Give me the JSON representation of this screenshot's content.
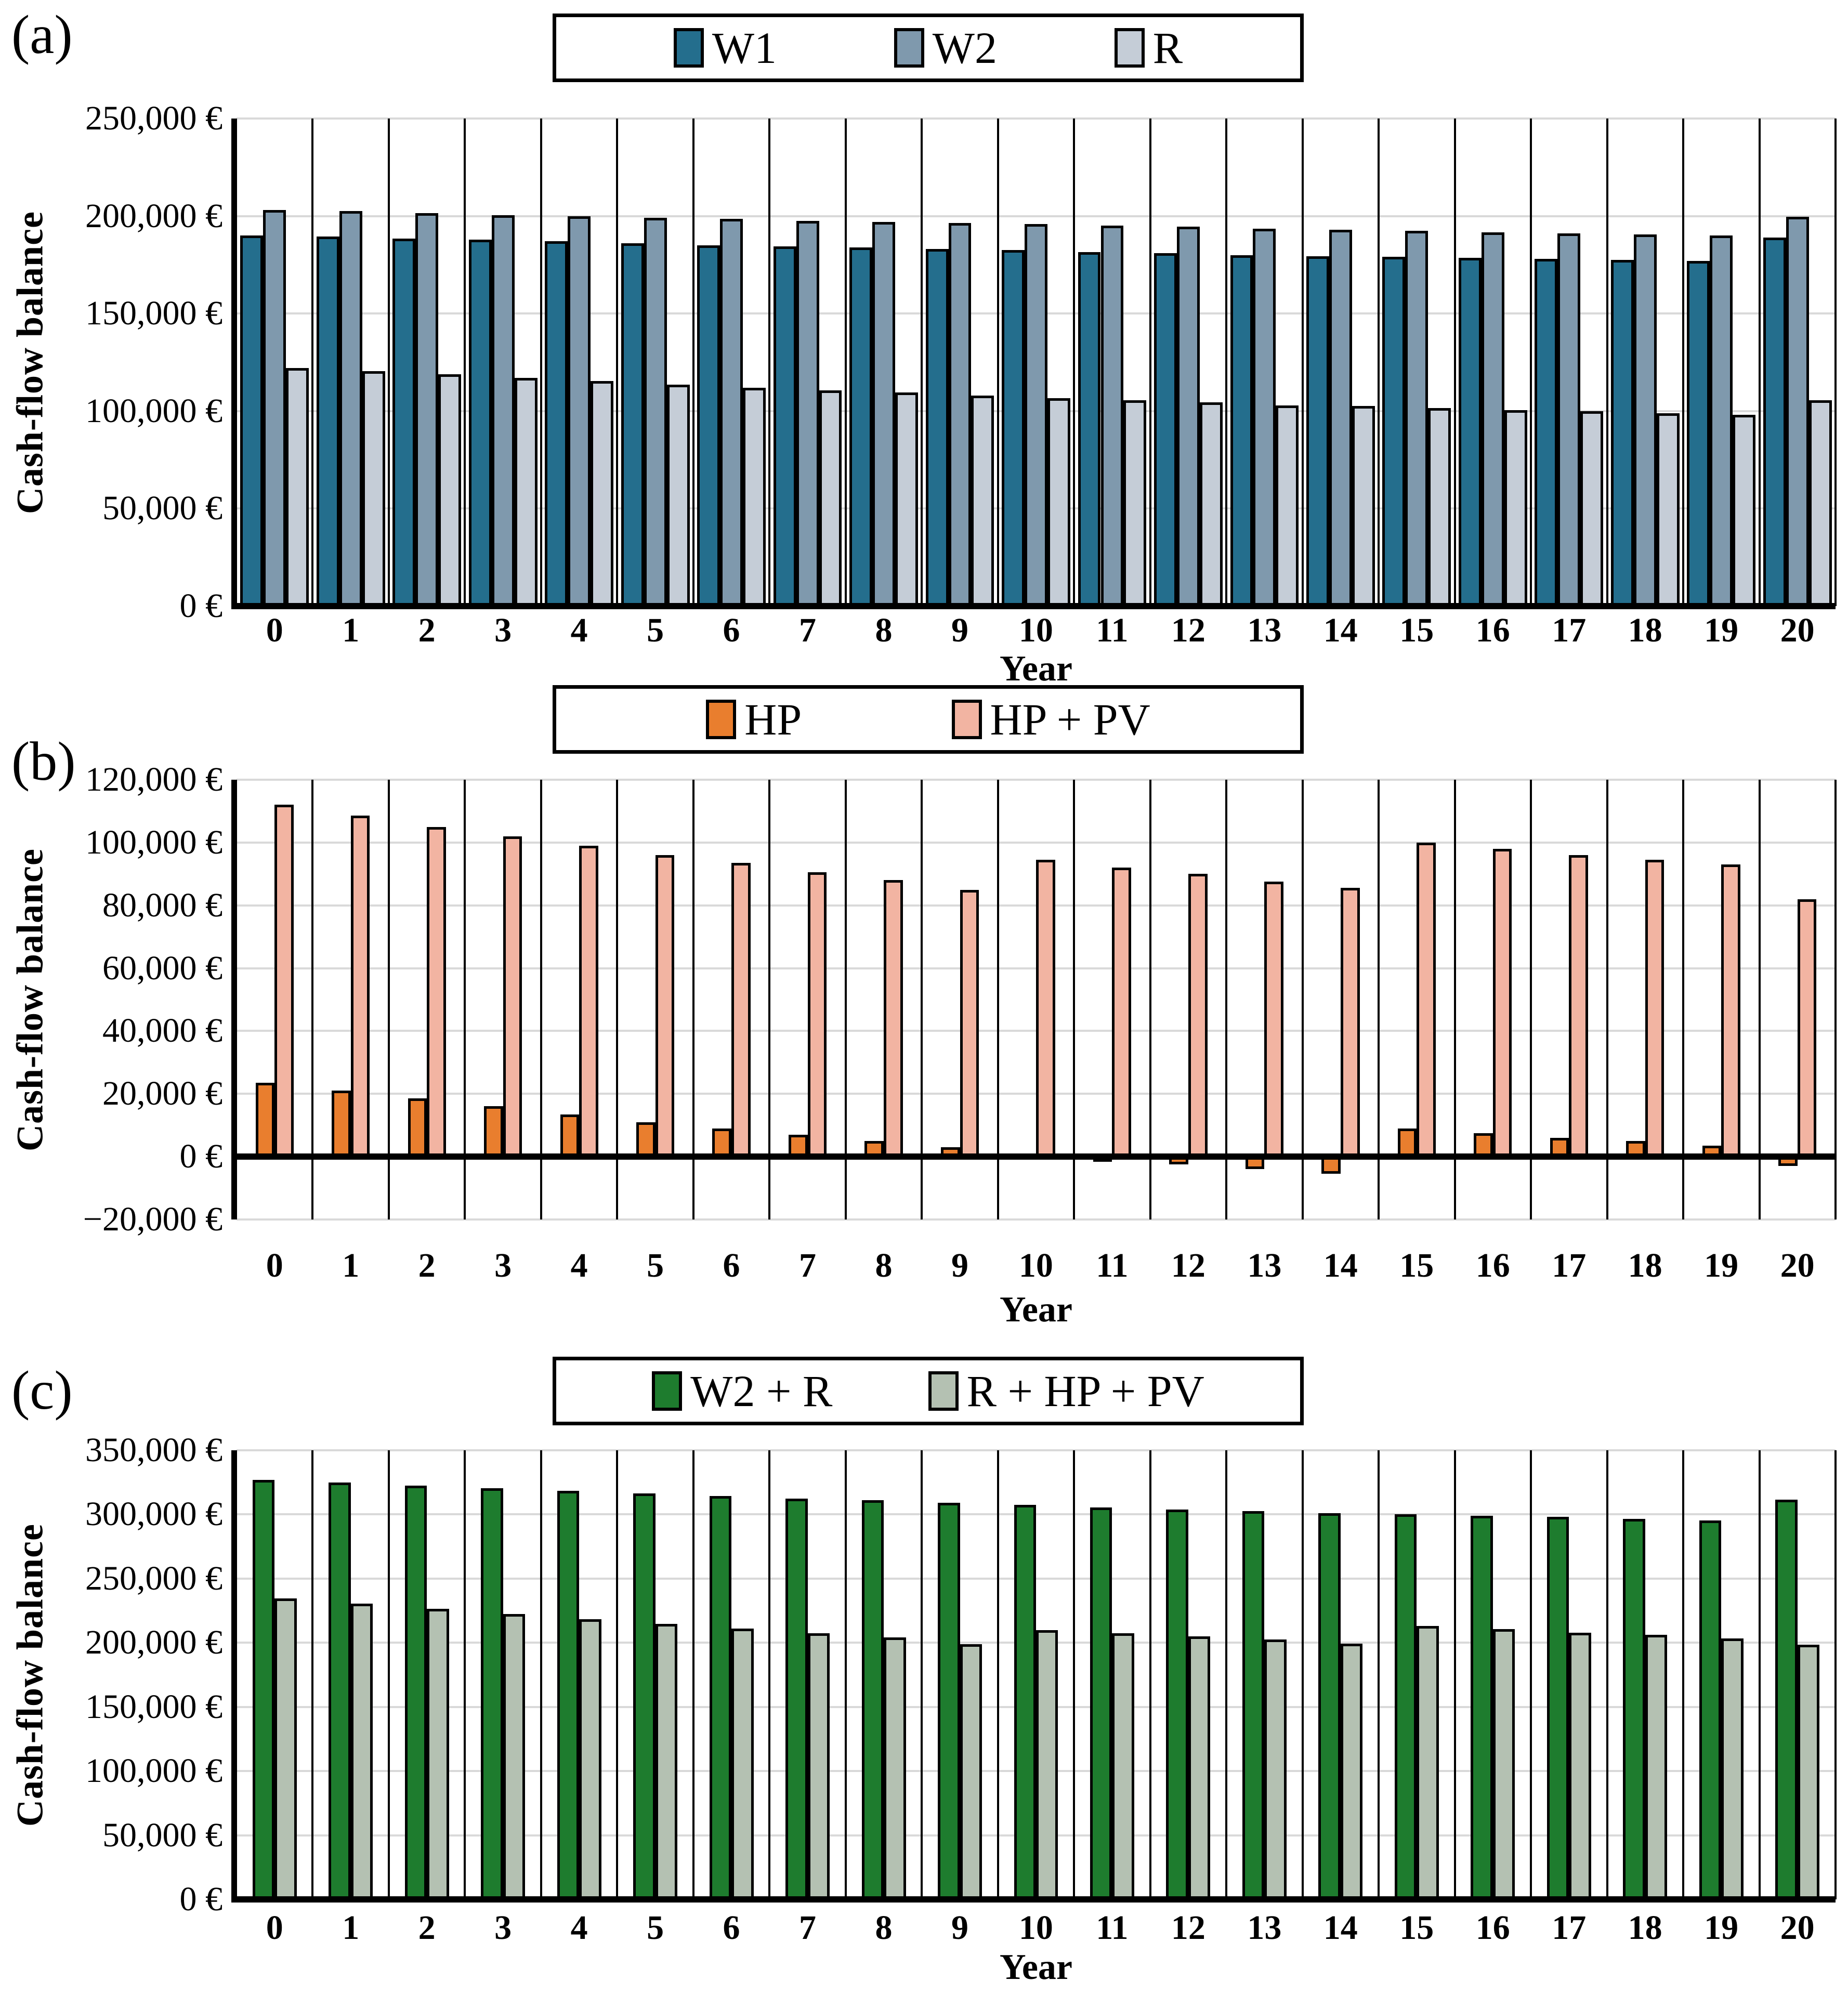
{
  "chart_data": [
    {
      "type": "bar",
      "panel_label": "(a)",
      "ylabel": "Cash-flow balance",
      "xlabel": "Year",
      "ylim": [
        0,
        250000
      ],
      "ytick_step": 50000,
      "grid": true,
      "legend_position": "top-center",
      "bar_frac": 0.3,
      "y_ticks": [
        {
          "value": 250000,
          "label": "250,000 €"
        },
        {
          "value": 200000,
          "label": "200,000 €"
        },
        {
          "value": 150000,
          "label": "150,000 €"
        },
        {
          "value": 100000,
          "label": "100,000 €"
        },
        {
          "value": 50000,
          "label": "50,000 €"
        },
        {
          "value": 0,
          "label": "0 €"
        }
      ],
      "categories": [
        "0",
        "1",
        "2",
        "3",
        "4",
        "5",
        "6",
        "7",
        "8",
        "9",
        "10",
        "11",
        "12",
        "13",
        "14",
        "15",
        "16",
        "17",
        "18",
        "19",
        "20"
      ],
      "series": [
        {
          "name": "W1",
          "color": "#246E8D",
          "values": [
            190000,
            189500,
            188500,
            188000,
            187000,
            186000,
            185000,
            184500,
            184000,
            183000,
            182500,
            181500,
            181000,
            180000,
            179500,
            179000,
            178500,
            178000,
            177500,
            177000,
            189000
          ]
        },
        {
          "name": "W2",
          "color": "#7F99AD",
          "values": [
            203000,
            202500,
            201500,
            200500,
            200000,
            199000,
            198500,
            197500,
            197000,
            196500,
            196000,
            195000,
            194500,
            193500,
            193000,
            192500,
            191500,
            191000,
            190500,
            190000,
            199500
          ]
        },
        {
          "name": "R",
          "color": "#C5CDD7",
          "values": [
            122000,
            120500,
            119000,
            117000,
            115500,
            113500,
            112000,
            110500,
            109500,
            108000,
            106500,
            105500,
            104500,
            103000,
            102500,
            101500,
            100500,
            100000,
            99000,
            98000,
            105500
          ]
        }
      ]
    },
    {
      "type": "bar",
      "panel_label": "(b)",
      "ylabel": "Cash-flow balance",
      "xlabel": "Year",
      "ylim": [
        -20000,
        120000
      ],
      "ytick_step": 20000,
      "grid": true,
      "legend_position": "top-center",
      "bar_frac": 0.25,
      "y_ticks": [
        {
          "value": 120000,
          "label": "120,000 €"
        },
        {
          "value": 100000,
          "label": "100,000 €"
        },
        {
          "value": 80000,
          "label": "80,000 €"
        },
        {
          "value": 60000,
          "label": "60,000 €"
        },
        {
          "value": 40000,
          "label": "40,000 €"
        },
        {
          "value": 20000,
          "label": "20,000 €"
        },
        {
          "value": 0,
          "label": "0 €"
        },
        {
          "value": -20000,
          "label": "−20,000 €"
        }
      ],
      "categories": [
        "0",
        "1",
        "2",
        "3",
        "4",
        "5",
        "6",
        "7",
        "8",
        "9",
        "10",
        "11",
        "12",
        "13",
        "14",
        "15",
        "16",
        "17",
        "18",
        "19",
        "20"
      ],
      "series": [
        {
          "name": "HP",
          "color": "#E97E2E",
          "values": [
            23500,
            21000,
            18500,
            16000,
            13500,
            11000,
            9000,
            7000,
            5000,
            3000,
            1000,
            -500,
            -2500,
            -4000,
            -5500,
            9000,
            7500,
            6000,
            5000,
            3500,
            -3000
          ]
        },
        {
          "name": "HP + PV",
          "color": "#F2B4A2",
          "values": [
            112000,
            108500,
            105000,
            102000,
            99000,
            96000,
            93500,
            90500,
            88000,
            85000,
            94500,
            92000,
            90000,
            87500,
            85500,
            100000,
            98000,
            96000,
            94500,
            93000,
            82000
          ]
        }
      ]
    },
    {
      "type": "bar",
      "panel_label": "(c)",
      "ylabel": "Cash-flow balance",
      "xlabel": "Year",
      "ylim": [
        0,
        350000
      ],
      "ytick_step": 50000,
      "grid": true,
      "legend_position": "top-center",
      "bar_frac": 0.29,
      "y_ticks": [
        {
          "value": 350000,
          "label": "350,000 €"
        },
        {
          "value": 300000,
          "label": "300,000 €"
        },
        {
          "value": 250000,
          "label": "250,000 €"
        },
        {
          "value": 200000,
          "label": "200,000 €"
        },
        {
          "value": 150000,
          "label": "150,000 €"
        },
        {
          "value": 100000,
          "label": "100,000 €"
        },
        {
          "value": 50000,
          "label": "50,000 €"
        },
        {
          "value": 0,
          "label": "0 €"
        }
      ],
      "categories": [
        "0",
        "1",
        "2",
        "3",
        "4",
        "5",
        "6",
        "7",
        "8",
        "9",
        "10",
        "11",
        "12",
        "13",
        "14",
        "15",
        "16",
        "17",
        "18",
        "19",
        "20"
      ],
      "series": [
        {
          "name": "W2 + R",
          "color": "#1E7C2E",
          "values": [
            327000,
            325000,
            322500,
            320500,
            318500,
            316500,
            314500,
            312500,
            311000,
            309000,
            307500,
            305500,
            304000,
            302500,
            301000,
            300000,
            299000,
            298000,
            296500,
            295500,
            311500
          ]
        },
        {
          "name": "R + HP + PV",
          "color": "#B4C1B2",
          "values": [
            234500,
            230500,
            226500,
            222500,
            218500,
            214500,
            211000,
            207500,
            204000,
            199000,
            210000,
            207500,
            205000,
            202500,
            199500,
            213000,
            210500,
            208000,
            206000,
            203500,
            198500
          ]
        }
      ]
    }
  ]
}
